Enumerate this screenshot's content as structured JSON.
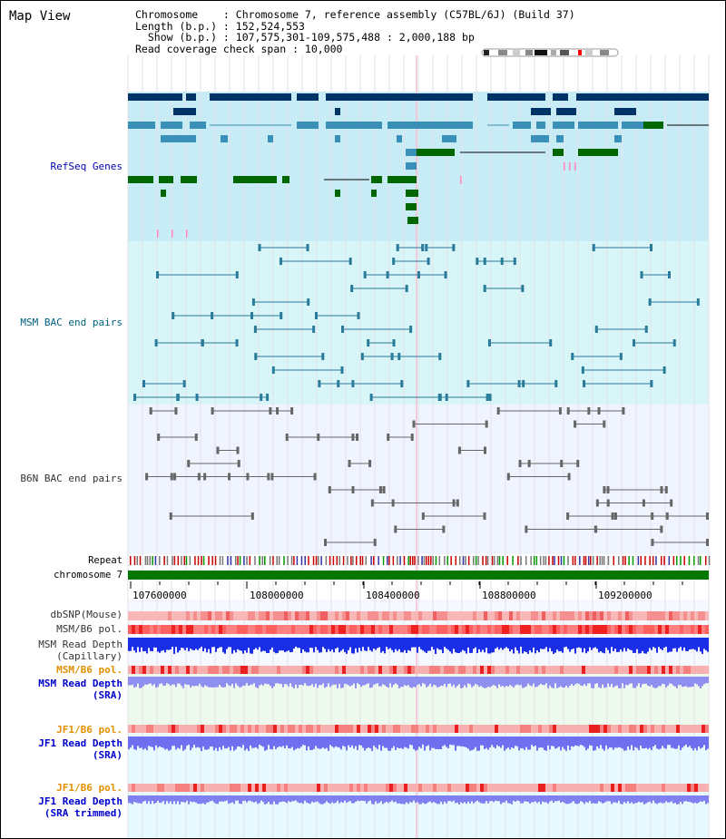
{
  "title": "Map View",
  "info": {
    "chromosome": "Chromosome    : Chromosome 7, reference assembly (C57BL/6J) (Build 37)",
    "length": "Length (b.p.) : 152,524,553",
    "show": "  Show (b.p.) : 107,575,301-109,575,488 : 2,000,188 bp",
    "coverage": "Read coverage check span : 10,000"
  },
  "tracks": {
    "refseq": "RefSeq Genes",
    "msm_bac": "MSM BAC end pairs",
    "b6n_bac": "B6N BAC end pairs",
    "repeat": "Repeat",
    "chromosome": "chromosome 7",
    "dbsnp": "dbSNP(Mouse)",
    "msm_b6_pol": "MSM/B6 pol.",
    "msm_depth_cap_1": "MSM Read Depth",
    "msm_depth_cap_2": "(Capillary)",
    "msm_b6_pol2": "MSM/B6 pol.",
    "msm_depth_sra_1": "MSM Read Depth",
    "msm_depth_sra_2": "(SRA)",
    "jf1_b6_pol": "JF1/B6 pol.",
    "jf1_depth_sra_1": "JF1 Read Depth",
    "jf1_depth_sra_2": "(SRA)",
    "jf1_b6_pol2": "JF1/B6 pol.",
    "jf1_depth_trim_1": "JF1 Read Depth",
    "jf1_depth_trim_2": "(SRA trimmed)"
  },
  "axis": {
    "ticks": [
      "107600000",
      "108000000",
      "108400000",
      "108800000",
      "109200000"
    ]
  },
  "colors": {
    "refseq_bg": "#c8ecf6",
    "msm_bg": "#d8f6f8",
    "b6n_bg": "#f0f4ff",
    "gene_navy": "#003366",
    "gene_blue": "#3a8fb7",
    "gene_green": "#006600",
    "chromosome_green": "#007700"
  }
}
